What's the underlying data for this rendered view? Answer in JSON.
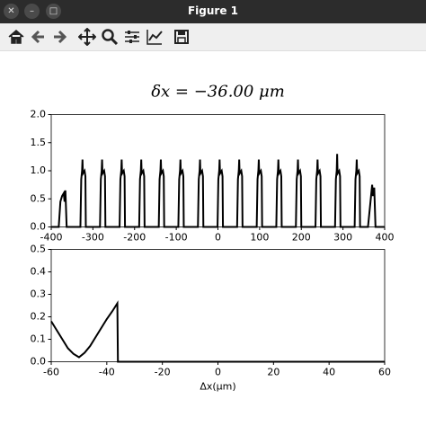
{
  "window": {
    "title": "Figure 1"
  },
  "chart_data": [
    {
      "type": "line",
      "title": "δx = −36.00 μm",
      "color": "#000000",
      "xlim": [
        -400,
        400
      ],
      "ylim": [
        0,
        2
      ],
      "xticks": [
        -400,
        -300,
        -200,
        -100,
        0,
        100,
        200,
        300,
        400
      ],
      "yticks": [
        {
          "value": 0,
          "label": "0.0"
        },
        0.5,
        {
          "value": 1,
          "label": "1.0"
        },
        1.5,
        {
          "value": 2,
          "label": "2.0"
        }
      ],
      "x": [
        -400,
        -382,
        -378,
        -374,
        -370,
        -368,
        -366,
        -363,
        -330,
        -328,
        -326,
        -325,
        -324,
        -320,
        -318,
        -317,
        -283,
        -281,
        -279,
        -278,
        -277,
        -273,
        -271,
        -270,
        -236,
        -234,
        -232,
        -231,
        -230,
        -226,
        -224,
        -223,
        -189,
        -187,
        -185,
        -184,
        -183,
        -179,
        -177,
        -176,
        -142,
        -140,
        -138,
        -137,
        -136,
        -132,
        -130,
        -129,
        -95,
        -93,
        -91,
        -90,
        -89,
        -85,
        -83,
        -82,
        -48,
        -46,
        -44,
        -43,
        -42,
        -38,
        -36,
        -35,
        -1,
        1,
        3,
        4,
        5,
        9,
        11,
        12,
        46,
        48,
        50,
        51,
        52,
        56,
        58,
        59,
        93,
        95,
        97,
        98,
        99,
        103,
        105,
        106,
        140,
        142,
        144,
        145,
        146,
        150,
        152,
        153,
        187,
        189,
        191,
        192,
        193,
        197,
        199,
        200,
        234,
        236,
        238,
        239,
        240,
        244,
        246,
        247,
        281,
        283,
        285,
        286,
        287,
        291,
        293,
        294,
        328,
        330,
        332,
        333,
        334,
        338,
        340,
        341,
        360,
        364,
        368,
        370,
        372,
        375,
        378,
        400
      ],
      "values": [
        0,
        0,
        0.45,
        0.55,
        0.6,
        0.45,
        0.65,
        0,
        0,
        0.85,
        1.0,
        1.2,
        0.95,
        1.0,
        0.9,
        0,
        0,
        0.85,
        1.0,
        1.2,
        0.95,
        1.0,
        0.9,
        0,
        0,
        0.85,
        1.0,
        1.2,
        0.95,
        1.0,
        0.9,
        0,
        0,
        0.85,
        1.0,
        1.2,
        0.95,
        1.0,
        0.9,
        0,
        0,
        0.85,
        1.0,
        1.2,
        0.95,
        1.0,
        0.9,
        0,
        0,
        0.85,
        1.0,
        1.2,
        0.95,
        1.0,
        0.9,
        0,
        0,
        0.85,
        1.0,
        1.2,
        0.95,
        1.0,
        0.9,
        0,
        0,
        0.85,
        1.0,
        1.2,
        0.95,
        1.0,
        0.9,
        0,
        0,
        0.85,
        1.0,
        1.2,
        0.95,
        1.0,
        0.9,
        0,
        0,
        0.85,
        1.0,
        1.2,
        0.95,
        1.0,
        0.9,
        0,
        0,
        0.85,
        1.0,
        1.2,
        0.95,
        1.0,
        0.9,
        0,
        0,
        0.85,
        1.0,
        1.2,
        0.95,
        1.0,
        0.9,
        0,
        0,
        0.85,
        1.0,
        1.2,
        0.95,
        1.0,
        0.9,
        0,
        0,
        0.85,
        1.0,
        1.3,
        0.95,
        1.0,
        0.9,
        0,
        0,
        0.85,
        1.0,
        1.2,
        0.95,
        1.0,
        0.9,
        0,
        0,
        0.3,
        0.6,
        0.75,
        0.55,
        0.7,
        0,
        0
      ]
    },
    {
      "type": "line",
      "xlabel": "Δx(μm)",
      "color": "#000000",
      "xlim": [
        -60,
        60
      ],
      "ylim": [
        0,
        0.5
      ],
      "xticks": [
        -60,
        -40,
        -20,
        0,
        20,
        40,
        60
      ],
      "yticks": [
        {
          "value": 0,
          "label": "0.0"
        },
        0.1,
        0.2,
        0.3,
        0.4,
        0.5
      ],
      "x": [
        -60,
        -58,
        -56,
        -54,
        -52,
        -50,
        -48,
        -46,
        -44,
        -42,
        -40,
        -38,
        -36.2,
        -36,
        60
      ],
      "values": [
        0.18,
        0.14,
        0.1,
        0.06,
        0.035,
        0.02,
        0.04,
        0.07,
        0.11,
        0.15,
        0.19,
        0.225,
        0.26,
        0,
        0
      ]
    }
  ]
}
